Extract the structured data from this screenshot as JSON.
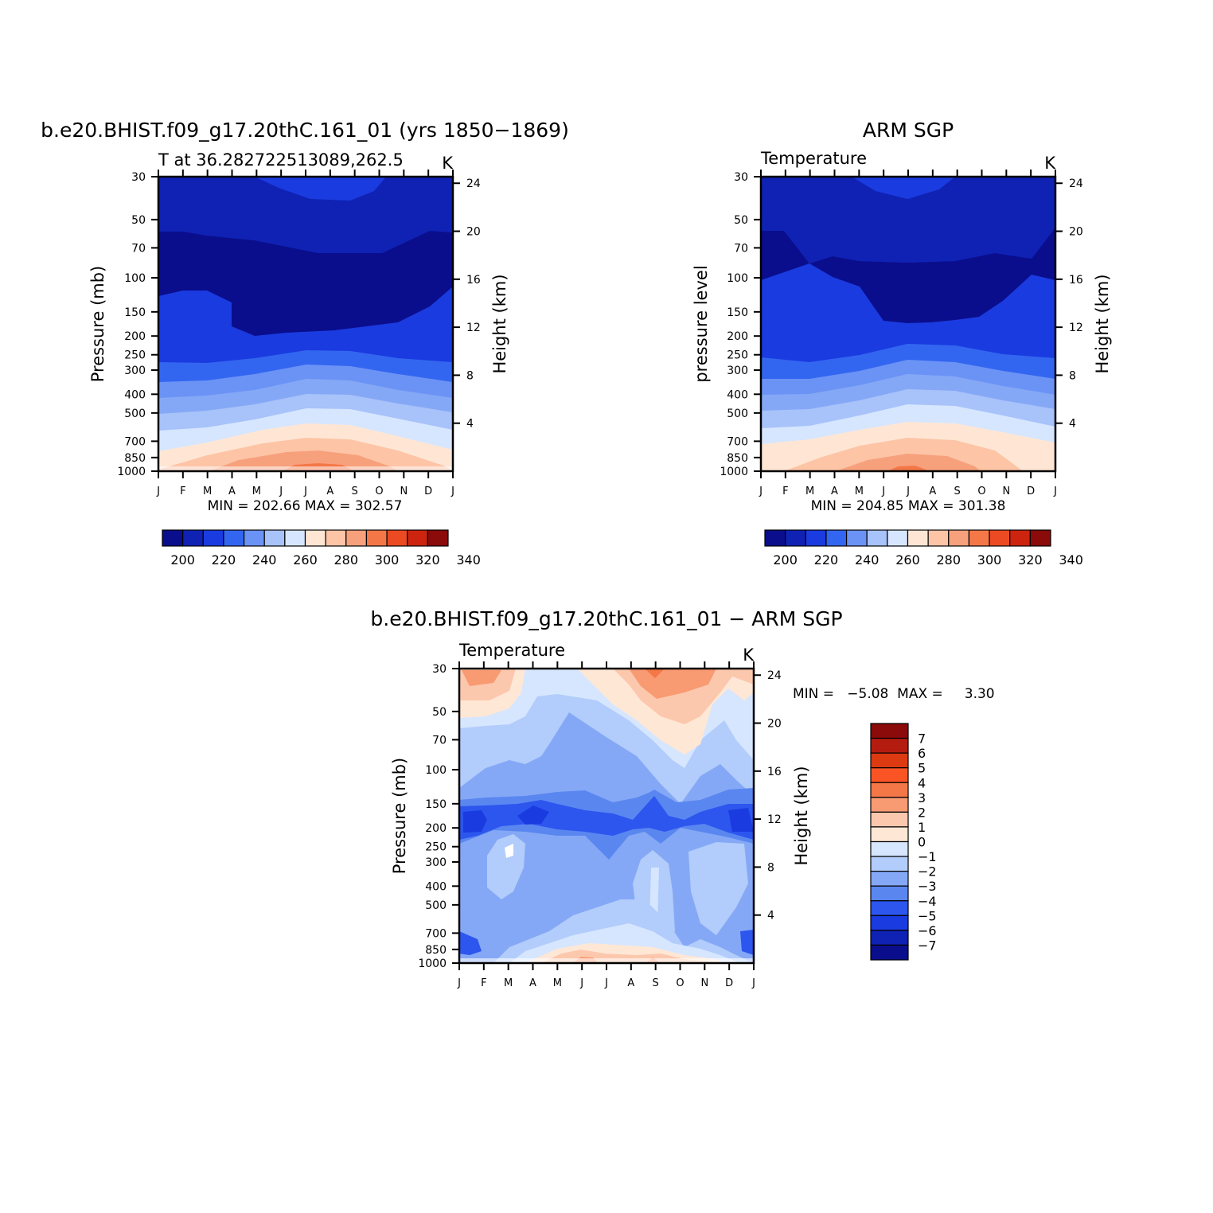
{
  "chart_data": [
    {
      "type": "heatmap",
      "title": "b.e20.BHIST.f09_g17.20thC.161_01 (yrs 1850−1869)",
      "subtitle": "T at 36.282722513089,262.5",
      "units": "K",
      "ylabel": "Pressure (mb)",
      "y2label": "Height (km)",
      "stats": "MIN = 202.66 MAX = 302.57",
      "colorbar_labels": [
        "200",
        "220",
        "240",
        "260",
        "280",
        "300",
        "320",
        "340"
      ],
      "grid": false
    },
    {
      "type": "heatmap",
      "title": "ARM SGP",
      "subtitle": "Temperature",
      "units": "K",
      "ylabel": "pressure level",
      "y2label": "Height (km)",
      "stats": "MIN = 204.85 MAX = 301.38",
      "colorbar_labels": [
        "200",
        "220",
        "240",
        "260",
        "280",
        "300",
        "320",
        "340"
      ],
      "grid": false
    },
    {
      "type": "heatmap",
      "title": "b.e20.BHIST.f09_g17.20thC.161_01 − ARM SGP",
      "subtitle": "Temperature",
      "units": "K",
      "ylabel": "Pressure (mb)",
      "y2label": "Height (km)",
      "stats": "MIN =   −5.08  MAX =     3.30",
      "colorbar_labels": [
        "7",
        "6",
        "5",
        "4",
        "3",
        "2",
        "1",
        "0",
        "−1",
        "−2",
        "−3",
        "−4",
        "−5",
        "−6",
        "−7"
      ],
      "grid": false
    }
  ],
  "axes": {
    "months": [
      "J",
      "F",
      "M",
      "A",
      "M",
      "J",
      "J",
      "A",
      "S",
      "O",
      "N",
      "D",
      "J"
    ],
    "pressure_ticks": [
      "30",
      "50",
      "70",
      "100",
      "150",
      "200",
      "250",
      "300",
      "400",
      "500",
      "700",
      "850",
      "1000"
    ],
    "pressure_values": [
      30,
      50,
      70,
      100,
      150,
      200,
      250,
      300,
      400,
      500,
      700,
      850,
      1000
    ],
    "height_ticks": [
      "24",
      "20",
      "16",
      "12",
      "8",
      "4"
    ],
    "height_values": [
      24,
      20,
      16,
      12,
      8,
      4
    ]
  },
  "colors": {
    "abs_scale": [
      "#0a0e8c",
      "#0f22b4",
      "#1a3be0",
      "#3366f0",
      "#6b93f5",
      "#a8c2fa",
      "#d6e6ff",
      "#ffe6d4",
      "#fdc4a6",
      "#f7a07c",
      "#f47748",
      "#ec4a22",
      "#cd2410",
      "#8b0a0a"
    ],
    "diff_scale": [
      "#8b0a0a",
      "#b51c10",
      "#dd3a12",
      "#fa5425",
      "#f47748",
      "#f89a72",
      "#fcc8ad",
      "#ffe7d6",
      "#d6e6ff",
      "#b2ccfb",
      "#85a8f6",
      "#5a86f0",
      "#2c56ee",
      "#1a3be0",
      "#0f22b4",
      "#0a0e8c"
    ]
  }
}
